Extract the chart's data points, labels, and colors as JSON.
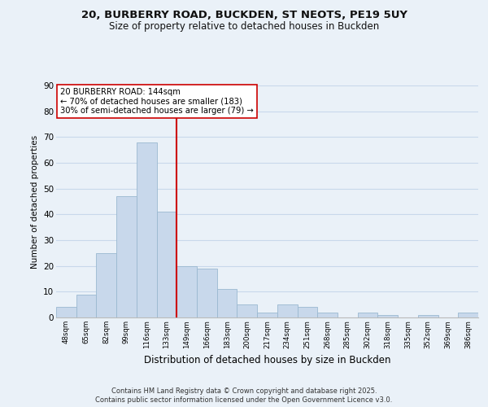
{
  "title_line1": "20, BURBERRY ROAD, BUCKDEN, ST NEOTS, PE19 5UY",
  "title_line2": "Size of property relative to detached houses in Buckden",
  "xlabel": "Distribution of detached houses by size in Buckden",
  "ylabel": "Number of detached properties",
  "bar_labels": [
    "48sqm",
    "65sqm",
    "82sqm",
    "99sqm",
    "116sqm",
    "133sqm",
    "149sqm",
    "166sqm",
    "183sqm",
    "200sqm",
    "217sqm",
    "234sqm",
    "251sqm",
    "268sqm",
    "285sqm",
    "302sqm",
    "318sqm",
    "335sqm",
    "352sqm",
    "369sqm",
    "386sqm"
  ],
  "bar_values": [
    4,
    9,
    25,
    47,
    68,
    41,
    20,
    19,
    11,
    5,
    2,
    5,
    4,
    2,
    0,
    2,
    1,
    0,
    1,
    0,
    2
  ],
  "bar_color": "#c8d8eb",
  "bar_edge_color": "#9ab8d0",
  "grid_color": "#c8d8eb",
  "background_color": "#eaf1f8",
  "vline_color": "#cc0000",
  "ylim": [
    0,
    90
  ],
  "yticks": [
    0,
    10,
    20,
    30,
    40,
    50,
    60,
    70,
    80,
    90
  ],
  "annotation_title": "20 BURBERRY ROAD: 144sqm",
  "annotation_line1": "← 70% of detached houses are smaller (183)",
  "annotation_line2": "30% of semi-detached houses are larger (79) →",
  "annotation_box_color": "#ffffff",
  "annotation_box_edge": "#cc0000",
  "footer_line1": "Contains HM Land Registry data © Crown copyright and database right 2025.",
  "footer_line2": "Contains public sector information licensed under the Open Government Licence v3.0."
}
